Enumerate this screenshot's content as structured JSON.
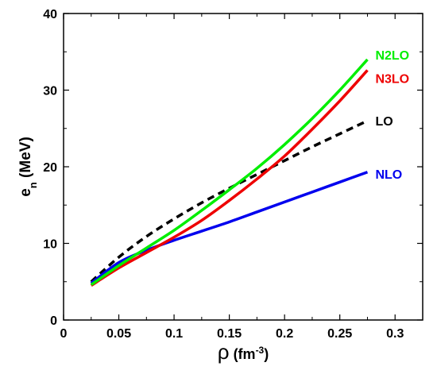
{
  "chart_data": {
    "type": "line",
    "xlabel": {
      "symbol": "ρ",
      "unit_open": " (fm",
      "unit_exp": "-3",
      "unit_close": ")"
    },
    "ylabel": {
      "base": "e",
      "sub": "n",
      "rest": " (MeV)"
    },
    "xlim": [
      0,
      0.325
    ],
    "ylim": [
      0,
      40
    ],
    "xticks": [
      0,
      0.05,
      0.1,
      0.15,
      0.2,
      0.25,
      0.3
    ],
    "xtick_labels": [
      "0",
      "0.05",
      "0.1",
      "0.15",
      "0.2",
      "0.25",
      "0.3"
    ],
    "yticks": [
      0,
      10,
      20,
      30,
      40
    ],
    "ytick_labels": [
      "0",
      "10",
      "20",
      "30",
      "40"
    ],
    "grid": false,
    "legend": "inline labels at line ends",
    "series": [
      {
        "name": "N2LO",
        "color": "#00ee00",
        "dash": "solid",
        "x": [
          0.025,
          0.05,
          0.075,
          0.1,
          0.125,
          0.15,
          0.175,
          0.2,
          0.225,
          0.25,
          0.275
        ],
        "y": [
          4.6,
          7.1,
          9.4,
          11.7,
          14.3,
          17.0,
          19.8,
          22.9,
          26.3,
          30.0,
          34.0
        ]
      },
      {
        "name": "N3LO",
        "color": "#ee0000",
        "dash": "solid",
        "x": [
          0.025,
          0.05,
          0.075,
          0.1,
          0.125,
          0.15,
          0.175,
          0.2,
          0.225,
          0.25,
          0.275
        ],
        "y": [
          4.5,
          6.8,
          8.8,
          10.8,
          13.0,
          15.6,
          18.4,
          21.4,
          24.9,
          28.6,
          32.6
        ]
      },
      {
        "name": "LO",
        "color": "#000000",
        "dash": "dashed",
        "x": [
          0.025,
          0.05,
          0.075,
          0.1,
          0.125,
          0.15,
          0.175,
          0.2,
          0.225,
          0.25,
          0.275
        ],
        "y": [
          5.0,
          8.2,
          10.9,
          13.2,
          15.3,
          17.2,
          19.0,
          20.8,
          22.6,
          24.3,
          26.0
        ]
      },
      {
        "name": "NLO",
        "color": "#0000ee",
        "dash": "solid",
        "x": [
          0.025,
          0.05,
          0.075,
          0.1,
          0.125,
          0.15,
          0.175,
          0.2,
          0.225,
          0.25,
          0.275
        ],
        "y": [
          4.8,
          7.5,
          9.1,
          10.4,
          11.6,
          12.8,
          14.1,
          15.4,
          16.7,
          18.0,
          19.3
        ]
      }
    ]
  }
}
